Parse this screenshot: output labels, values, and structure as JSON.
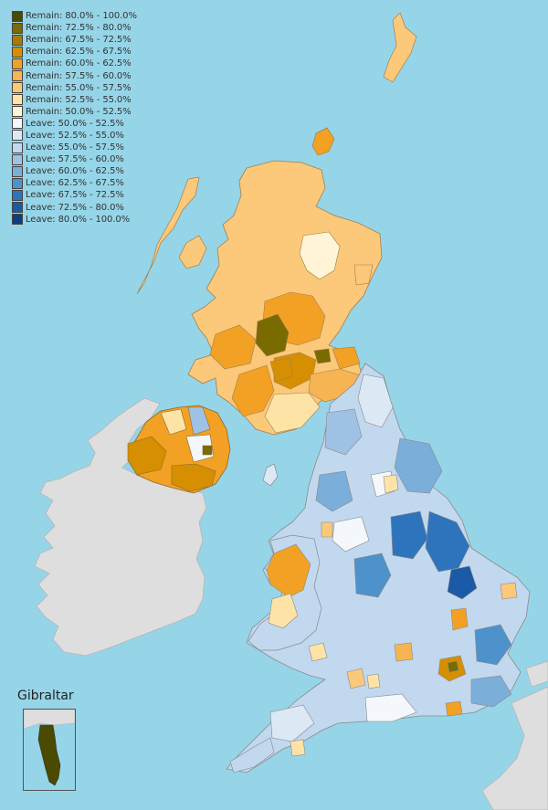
{
  "legend": {
    "items": [
      {
        "label": "Remain: 80.0% - 100.0%",
        "color": "#4a4a00"
      },
      {
        "label": "Remain: 72.5% - 80.0%",
        "color": "#7a6b00"
      },
      {
        "label": "Remain: 67.5% - 72.5%",
        "color": "#a87c00"
      },
      {
        "label": "Remain: 62.5% - 67.5%",
        "color": "#d68f00"
      },
      {
        "label": "Remain: 60.0% - 62.5%",
        "color": "#f2a124"
      },
      {
        "label": "Remain: 57.5% - 60.0%",
        "color": "#f7b453"
      },
      {
        "label": "Remain: 55.0% - 57.5%",
        "color": "#fcc879"
      },
      {
        "label": "Remain: 52.5% - 55.0%",
        "color": "#fde4a6"
      },
      {
        "label": "Remain: 50.0% - 52.5%",
        "color": "#fff4d6"
      },
      {
        "label": "Leave: 50.0% - 52.5%",
        "color": "#f4f7fc"
      },
      {
        "label": "Leave: 52.5% - 55.0%",
        "color": "#dde8f5"
      },
      {
        "label": "Leave: 55.0% - 57.5%",
        "color": "#c2d8ee"
      },
      {
        "label": "Leave: 57.5% - 60.0%",
        "color": "#9fc2e4"
      },
      {
        "label": "Leave: 60.0% - 62.5%",
        "color": "#7baed9"
      },
      {
        "label": "Leave: 62.5% - 67.5%",
        "color": "#4e92cc"
      },
      {
        "label": "Leave: 67.5% - 72.5%",
        "color": "#2e74bc"
      },
      {
        "label": "Leave: 72.5% - 80.0%",
        "color": "#1a5aa6"
      },
      {
        "label": "Leave: 80.0% - 100.0%",
        "color": "#0d3f80"
      }
    ]
  },
  "inset": {
    "title": "Gibraltar",
    "color": "#4a4a00"
  },
  "colors": {
    "sea": "#96d5e8",
    "foreign_land": "#dedede",
    "border": "#8a8a8a"
  }
}
